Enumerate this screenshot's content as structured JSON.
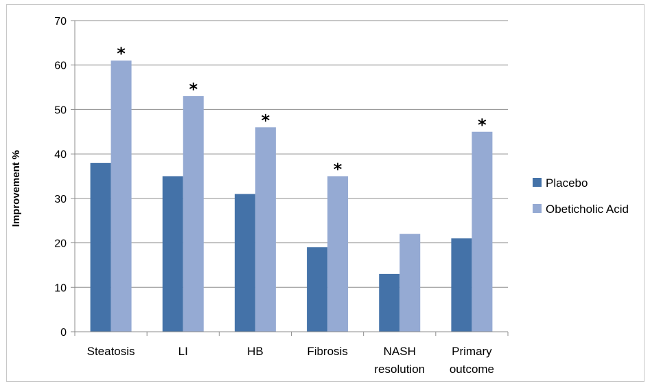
{
  "chart_data": {
    "type": "bar",
    "categories": [
      [
        "Steatosis"
      ],
      [
        "LI"
      ],
      [
        "HB"
      ],
      [
        "Fibrosis"
      ],
      [
        "NASH",
        "resolution"
      ],
      [
        "Primary",
        "outcome"
      ]
    ],
    "series": [
      {
        "name": "Placebo",
        "color": "#4472A8",
        "values": [
          38,
          35,
          31,
          19,
          13,
          21
        ]
      },
      {
        "name": "Obeticholic Acid",
        "color": "#95AAD3",
        "values": [
          61,
          53,
          46,
          35,
          22,
          45
        ]
      }
    ],
    "significance_marker": "*",
    "significant": [
      true,
      true,
      true,
      true,
      false,
      true
    ],
    "ylabel": "Improvement %",
    "ylim": [
      0,
      70
    ],
    "yticks": [
      0,
      10,
      20,
      30,
      40,
      50,
      60,
      70
    ],
    "grid": true,
    "legend_position": "right"
  }
}
